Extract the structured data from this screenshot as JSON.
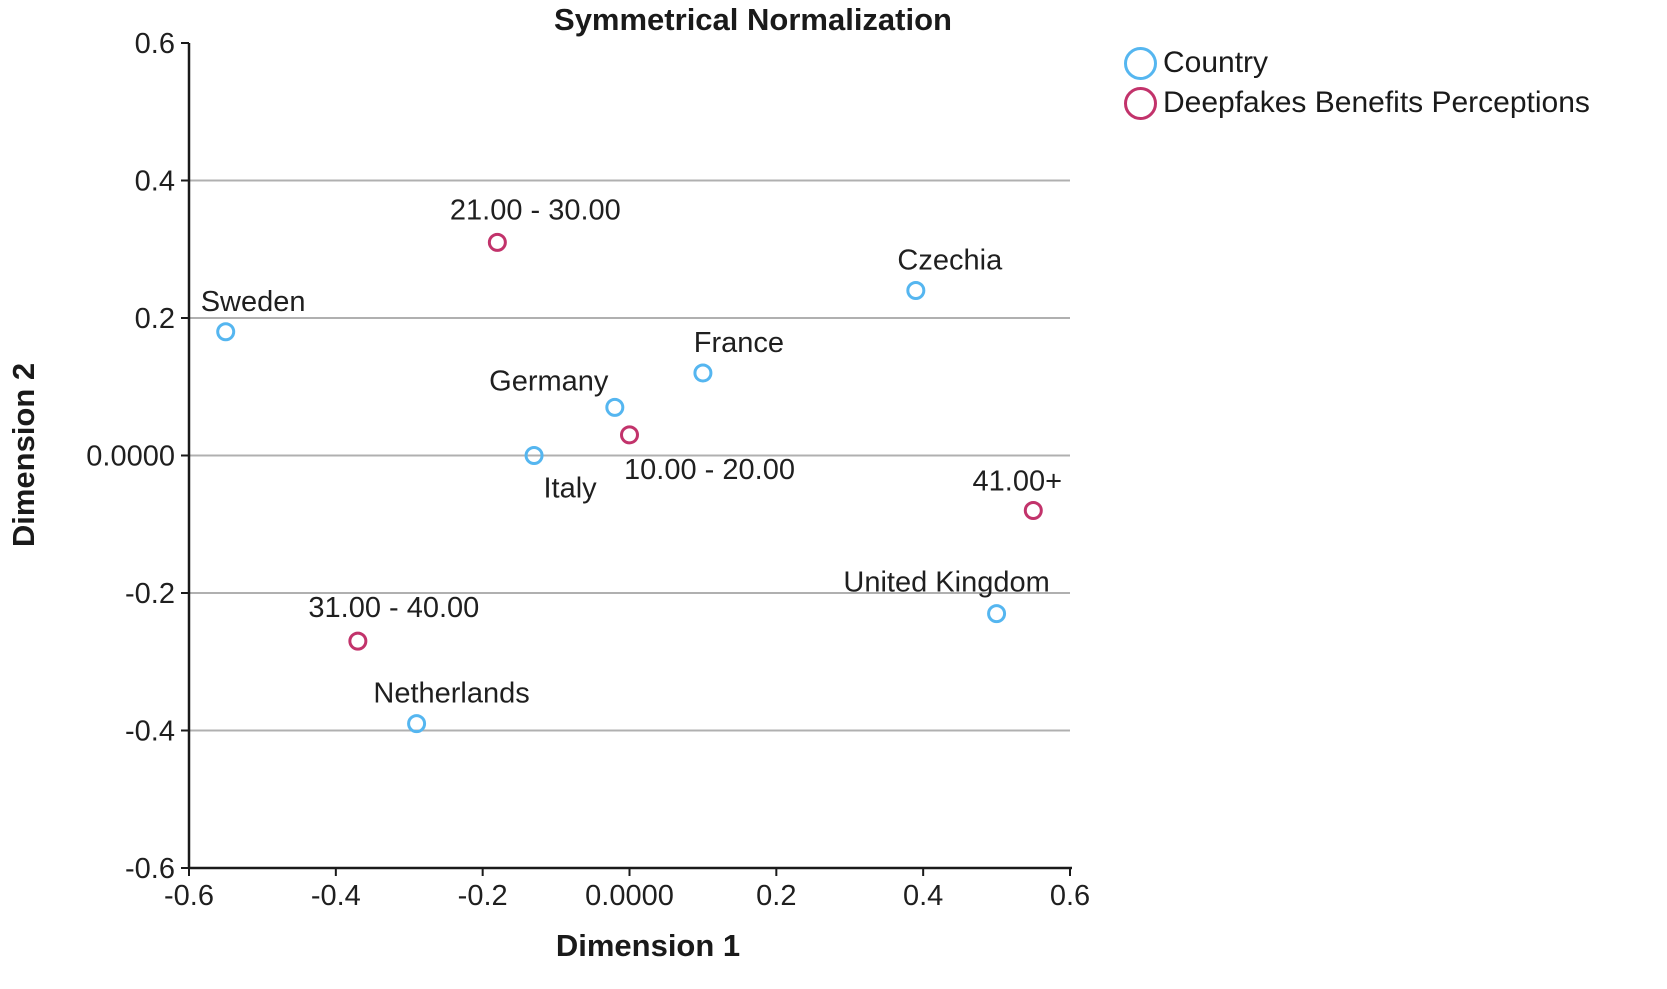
{
  "title": "Symmetrical Normalization",
  "colors": {
    "country": "#55b6f0",
    "perceptions": "#c2336b",
    "grid": "#b0b0b0",
    "axis": "#1a1a1a",
    "text": "#1f1f1f"
  },
  "legend": {
    "position": "top-right",
    "items": [
      {
        "label": "Country",
        "color_key": "country"
      },
      {
        "label": "Deepfakes Benefits Perceptions",
        "color_key": "perceptions"
      }
    ]
  },
  "chart_data": {
    "type": "scatter",
    "title": "Symmetrical Normalization",
    "xlabel": "Dimension 1",
    "ylabel": "Dimension 2",
    "xlim": [
      -0.6,
      0.6
    ],
    "ylim": [
      -0.6,
      0.6
    ],
    "grid": "horizontal-only",
    "grid_values": [
      0.4,
      0.2,
      0.0,
      -0.2,
      -0.4
    ],
    "x_ticks": [
      {
        "value": -0.6,
        "label": "-0.6"
      },
      {
        "value": -0.4,
        "label": "-0.4"
      },
      {
        "value": -0.2,
        "label": "-0.2"
      },
      {
        "value": 0.0,
        "label": "0.0000"
      },
      {
        "value": 0.2,
        "label": "0.2"
      },
      {
        "value": 0.4,
        "label": "0.4"
      },
      {
        "value": 0.6,
        "label": "0.6"
      }
    ],
    "y_ticks": [
      {
        "value": 0.6,
        "label": "0.6"
      },
      {
        "value": 0.4,
        "label": "0.4"
      },
      {
        "value": 0.2,
        "label": "0.2"
      },
      {
        "value": 0.0,
        "label": "0.0000"
      },
      {
        "value": -0.2,
        "label": "-0.2"
      },
      {
        "value": -0.4,
        "label": "-0.4"
      },
      {
        "value": -0.6,
        "label": "-0.6"
      }
    ],
    "series": [
      {
        "name": "Country",
        "color_key": "country",
        "points": [
          {
            "label": "Sweden",
            "x": -0.55,
            "y": 0.18,
            "label_dx": -25,
            "label_dy": -21,
            "anchor": "start"
          },
          {
            "label": "Germany",
            "x": -0.02,
            "y": 0.07,
            "label_dx": -66,
            "label_dy": -17,
            "anchor": "middle"
          },
          {
            "label": "Italy",
            "x": -0.13,
            "y": 0.0,
            "label_dx": 36,
            "label_dy": 42,
            "anchor": "middle"
          },
          {
            "label": "France",
            "x": 0.1,
            "y": 0.12,
            "label_dx": 36,
            "label_dy": -21,
            "anchor": "middle"
          },
          {
            "label": "Czechia",
            "x": 0.39,
            "y": 0.24,
            "label_dx": 34,
            "label_dy": -21,
            "anchor": "middle"
          },
          {
            "label": "United Kingdom",
            "x": 0.5,
            "y": -0.23,
            "label_dx": -50,
            "label_dy": -22,
            "anchor": "middle"
          },
          {
            "label": "Netherlands",
            "x": -0.29,
            "y": -0.39,
            "label_dx": 35,
            "label_dy": -21,
            "anchor": "middle"
          }
        ]
      },
      {
        "name": "Deepfakes Benefits Perceptions",
        "color_key": "perceptions",
        "points": [
          {
            "label": "10.00 - 20.00",
            "x": 0.0,
            "y": 0.03,
            "label_dx": 80,
            "label_dy": 44,
            "anchor": "middle"
          },
          {
            "label": "21.00 - 30.00",
            "x": -0.18,
            "y": 0.31,
            "label_dx": 38,
            "label_dy": -23,
            "anchor": "middle"
          },
          {
            "label": "31.00 - 40.00",
            "x": -0.37,
            "y": -0.27,
            "label_dx": 36,
            "label_dy": -24,
            "anchor": "middle"
          },
          {
            "label": "41.00+",
            "x": 0.55,
            "y": -0.08,
            "label_dx": -16,
            "label_dy": -20,
            "anchor": "middle"
          }
        ]
      }
    ]
  }
}
